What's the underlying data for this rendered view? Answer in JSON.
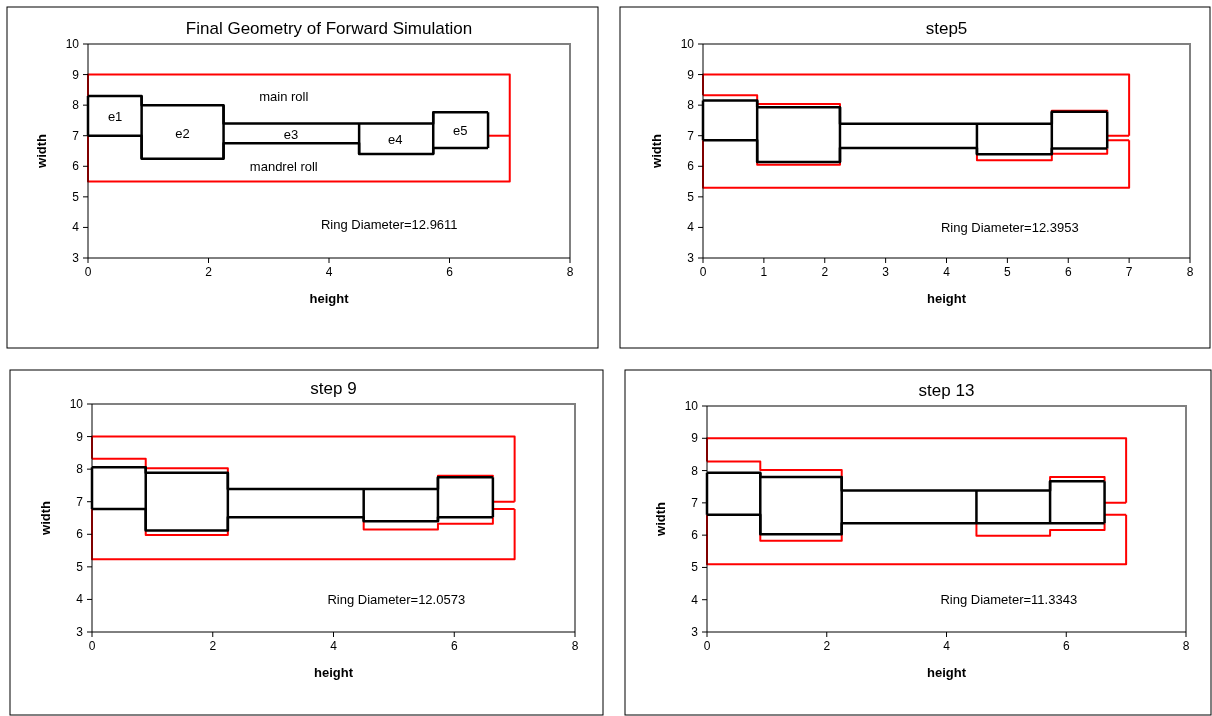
{
  "chart_data": [
    {
      "type": "line",
      "title": "Final Geometry of Forward Simulation",
      "xlabel": "height",
      "ylabel": "width",
      "xlim": [
        0,
        8
      ],
      "xticks": [
        0,
        2,
        4,
        6,
        8
      ],
      "ylim": [
        3,
        10
      ],
      "yticks": [
        3,
        4,
        5,
        6,
        7,
        8,
        9,
        10
      ],
      "annotations": [
        "Ring Diameter=12.9611",
        "main roll",
        "mandrel roll",
        "e1",
        "e2",
        "e3",
        "e4",
        "e5"
      ],
      "series": [
        {
          "color": "#ff0000",
          "x": [
            0,
            0,
            7,
            7,
            0,
            0
          ],
          "values": [
            8.3,
            9,
            9,
            5.5,
            5.5,
            7
          ]
        },
        {
          "color": "#ff0000",
          "x": [
            6.64,
            7
          ],
          "values": [
            7,
            7
          ]
        },
        {
          "color": "#000000",
          "x": [
            0,
            0.89,
            0.89,
            2.25,
            2.25,
            4.5,
            5.73,
            5.73,
            6.64
          ],
          "values": [
            8.3,
            8.3,
            8,
            8,
            7.4,
            7.4,
            7.4,
            7.77,
            7.77
          ]
        },
        {
          "color": "#000000",
          "x": [
            0,
            0.89,
            0.89,
            2.25,
            2.25,
            4.5,
            4.5,
            5.73,
            5.73,
            6.64
          ],
          "values": [
            7,
            7,
            6.25,
            6.25,
            6.75,
            6.75,
            6.4,
            6.4,
            6.6,
            6.6
          ]
        },
        {
          "color": "#000000",
          "x": [
            0,
            0,
            null,
            0.89,
            0.89,
            null,
            2.25,
            2.25,
            null,
            4.5,
            4.5,
            null,
            5.73,
            5.73,
            null,
            6.64,
            6.64
          ],
          "values": [
            7,
            8.3,
            null,
            6.25,
            8.3,
            null,
            6.25,
            8,
            null,
            6.4,
            7.4,
            null,
            6.4,
            7.77,
            null,
            6.6,
            7.77
          ]
        }
      ]
    },
    {
      "type": "line",
      "title": "step5",
      "xlabel": "height",
      "ylabel": "width",
      "xlim": [
        0,
        8
      ],
      "xticks": [
        0,
        1,
        2,
        3,
        4,
        5,
        6,
        7,
        8
      ],
      "ylim": [
        3,
        10
      ],
      "yticks": [
        3,
        4,
        5,
        6,
        7,
        8,
        9,
        10
      ],
      "annotations": [
        "Ring Diameter=12.3953"
      ],
      "series": [
        {
          "color": "#ff0000",
          "x": [
            0,
            0,
            7,
            7
          ],
          "values": [
            8.32,
            9,
            9,
            7
          ]
        },
        {
          "color": "#ff0000",
          "x": [
            0,
            0.89,
            0.89,
            2.25,
            2.25
          ],
          "values": [
            8.32,
            8.32,
            8.04,
            8.04,
            7.93
          ]
        },
        {
          "color": "#ff0000",
          "x": [
            5.73,
            5.73,
            6.64,
            6.64,
            null,
            6.64,
            7
          ],
          "values": [
            7.78,
            7.82,
            7.82,
            7.78,
            null,
            7,
            7
          ]
        },
        {
          "color": "#ff0000",
          "x": [
            0,
            0,
            7,
            7
          ],
          "values": [
            6.85,
            5.3,
            5.3,
            6.85
          ]
        },
        {
          "color": "#ff0000",
          "x": [
            0.89,
            0.89,
            2.25,
            2.25,
            null,
            4.5,
            4.5,
            5.73,
            5.73,
            6.64,
            6.64,
            null,
            6.64,
            7
          ],
          "values": [
            6.14,
            6.05,
            6.05,
            6.14,
            null,
            6.39,
            6.2,
            6.2,
            6.41,
            6.41,
            6.58,
            null,
            6.85,
            6.85
          ]
        },
        {
          "color": "#000000",
          "x": [
            0,
            0.89,
            0.89,
            2.25,
            2.25,
            4.5,
            5.73,
            5.73,
            6.64
          ],
          "values": [
            8.15,
            8.15,
            7.93,
            7.93,
            7.39,
            7.39,
            7.39,
            7.78,
            7.78
          ]
        },
        {
          "color": "#000000",
          "x": [
            0,
            0.89,
            0.89,
            2.25,
            2.25,
            4.5,
            4.5,
            5.73,
            5.73,
            6.64
          ],
          "values": [
            6.85,
            6.85,
            6.14,
            6.14,
            6.6,
            6.6,
            6.39,
            6.39,
            6.58,
            6.58
          ]
        },
        {
          "color": "#000000",
          "x": [
            0,
            0,
            null,
            0.89,
            0.89,
            null,
            2.25,
            2.25,
            null,
            4.5,
            4.5,
            null,
            5.73,
            5.73,
            null,
            6.64,
            6.64
          ],
          "values": [
            6.85,
            8.15,
            null,
            6.14,
            8.15,
            null,
            6.14,
            7.93,
            null,
            6.39,
            7.39,
            null,
            6.39,
            7.78,
            null,
            6.58,
            7.78
          ]
        }
      ]
    },
    {
      "type": "line",
      "title": "step 9",
      "xlabel": "height",
      "ylabel": "width",
      "xlim": [
        0,
        8
      ],
      "xticks": [
        0,
        2,
        4,
        6,
        8
      ],
      "ylim": [
        3,
        10
      ],
      "yticks": [
        3,
        4,
        5,
        6,
        7,
        8,
        9,
        10
      ],
      "annotations": [
        "Ring Diameter=12.0573"
      ],
      "series": [
        {
          "color": "#ff0000",
          "x": [
            0,
            0,
            7,
            7
          ],
          "values": [
            8.32,
            9,
            9,
            7
          ]
        },
        {
          "color": "#ff0000",
          "x": [
            0,
            0.89,
            0.89,
            2.25,
            2.25
          ],
          "values": [
            8.32,
            8.32,
            8.03,
            8.03,
            7.89
          ]
        },
        {
          "color": "#ff0000",
          "x": [
            5.73,
            5.73,
            6.64,
            6.64,
            null,
            6.64,
            7
          ],
          "values": [
            7.75,
            7.8,
            7.8,
            7.75,
            null,
            7,
            7
          ]
        },
        {
          "color": "#ff0000",
          "x": [
            0,
            0,
            7,
            7
          ],
          "values": [
            6.78,
            5.23,
            5.23,
            6.78
          ]
        },
        {
          "color": "#ff0000",
          "x": [
            0.89,
            0.89,
            2.25,
            2.25,
            null,
            4.5,
            4.5,
            5.73,
            5.73,
            6.64,
            6.64,
            null,
            6.64,
            7
          ],
          "values": [
            6.12,
            5.98,
            5.98,
            6.12,
            null,
            6.4,
            6.15,
            6.15,
            6.32,
            6.32,
            6.52,
            null,
            6.78,
            6.78
          ]
        },
        {
          "color": "#000000",
          "x": [
            0,
            0.89,
            0.89,
            2.25,
            2.25,
            4.5,
            5.73,
            5.73,
            6.64
          ],
          "values": [
            8.06,
            8.06,
            7.89,
            7.89,
            7.39,
            7.39,
            7.39,
            7.75,
            7.75
          ]
        },
        {
          "color": "#000000",
          "x": [
            0,
            0.89,
            0.89,
            2.25,
            2.25,
            4.5,
            4.5,
            5.73,
            5.73,
            6.64
          ],
          "values": [
            6.78,
            6.78,
            6.12,
            6.12,
            6.52,
            6.52,
            6.4,
            6.4,
            6.52,
            6.52
          ]
        },
        {
          "color": "#000000",
          "x": [
            0,
            0,
            null,
            0.89,
            0.89,
            null,
            2.25,
            2.25,
            null,
            4.5,
            4.5,
            null,
            5.73,
            5.73,
            null,
            6.64,
            6.64
          ],
          "values": [
            6.78,
            8.06,
            null,
            6.12,
            8.06,
            null,
            6.12,
            7.89,
            null,
            6.4,
            7.39,
            null,
            6.4,
            7.75,
            null,
            6.52,
            7.75
          ]
        }
      ]
    },
    {
      "type": "line",
      "title": "step 13",
      "xlabel": "height",
      "ylabel": "width",
      "xlim": [
        0,
        8
      ],
      "xticks": [
        0,
        2,
        4,
        6,
        8
      ],
      "ylim": [
        3,
        10
      ],
      "yticks": [
        3,
        4,
        5,
        6,
        7,
        8,
        9,
        10
      ],
      "annotations": [
        "Ring Diameter=11.3343"
      ],
      "series": [
        {
          "color": "#ff0000",
          "x": [
            0,
            0,
            7,
            7
          ],
          "values": [
            8.28,
            9,
            9,
            7
          ]
        },
        {
          "color": "#ff0000",
          "x": [
            0,
            0.89,
            0.89,
            2.25,
            2.25
          ],
          "values": [
            8.28,
            8.28,
            8.02,
            8.02,
            7.8
          ]
        },
        {
          "color": "#ff0000",
          "x": [
            5.73,
            5.73,
            6.64,
            6.64,
            null,
            6.64,
            7
          ],
          "values": [
            7.67,
            7.8,
            7.8,
            7.67,
            null,
            7,
            7
          ]
        },
        {
          "color": "#ff0000",
          "x": [
            0,
            0,
            7,
            7
          ],
          "values": [
            6.63,
            5.1,
            5.1,
            6.63
          ]
        },
        {
          "color": "#ff0000",
          "x": [
            0.89,
            0.89,
            2.25,
            2.25,
            null,
            4.5,
            4.5,
            5.73,
            5.73,
            6.64,
            6.64,
            null,
            6.64,
            7
          ],
          "values": [
            6.03,
            5.83,
            5.83,
            6.03,
            null,
            6.37,
            5.98,
            5.98,
            6.16,
            6.16,
            6.37,
            null,
            6.63,
            6.63
          ]
        },
        {
          "color": "#000000",
          "x": [
            0,
            0.89,
            0.89,
            2.25,
            2.25,
            4.5,
            5.73,
            5.73,
            6.64
          ],
          "values": [
            7.93,
            7.93,
            7.8,
            7.8,
            7.38,
            7.38,
            7.38,
            7.67,
            7.67
          ]
        },
        {
          "color": "#000000",
          "x": [
            0,
            0.89,
            0.89,
            2.25,
            2.25,
            4.5,
            5.73,
            6.64
          ],
          "values": [
            6.63,
            6.63,
            6.03,
            6.03,
            6.37,
            6.37,
            6.37,
            6.37
          ]
        },
        {
          "color": "#000000",
          "x": [
            0,
            0,
            null,
            0.89,
            0.89,
            null,
            2.25,
            2.25,
            null,
            4.5,
            4.5,
            null,
            5.73,
            5.73,
            null,
            6.64,
            6.64
          ],
          "values": [
            6.63,
            7.93,
            null,
            6.03,
            7.93,
            null,
            6.03,
            7.8,
            null,
            6.37,
            7.38,
            null,
            6.37,
            7.67,
            null,
            6.37,
            7.67
          ]
        }
      ]
    }
  ]
}
